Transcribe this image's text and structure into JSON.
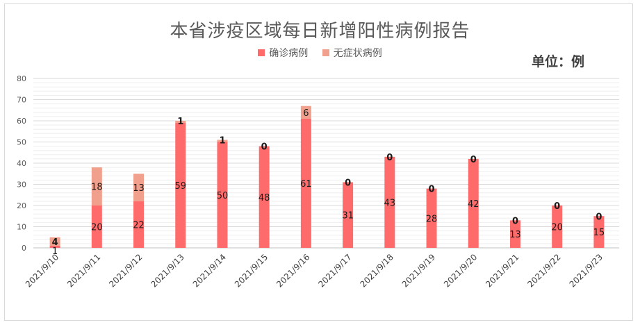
{
  "chart_data": {
    "type": "bar",
    "stacked": true,
    "title": "本省涉疫区域每日新增阳性病例报告",
    "unit_label": "单位：例",
    "categories": [
      "2021/9/10",
      "2021/9/11",
      "2021/9/12",
      "2021/9/13",
      "2021/9/14",
      "2021/9/15",
      "2021/9/16",
      "2021/9/17",
      "2021/9/18",
      "2021/9/19",
      "2021/9/20",
      "2021/9/21",
      "2021/9/22",
      "2021/9/23"
    ],
    "series": [
      {
        "name": "确诊病例",
        "color": "#ff6b6b",
        "values": [
          1,
          20,
          22,
          59,
          50,
          48,
          61,
          31,
          43,
          28,
          42,
          13,
          20,
          15
        ]
      },
      {
        "name": "无症状病例",
        "color": "#f0a08c",
        "values": [
          4,
          18,
          13,
          1,
          1,
          0,
          6,
          0,
          0,
          0,
          0,
          0,
          0,
          0
        ]
      }
    ],
    "ylim": [
      0,
      80
    ],
    "yticks": [
      0,
      10,
      20,
      30,
      40,
      50,
      60,
      70,
      80
    ],
    "grid": true,
    "legend_position": "top"
  }
}
